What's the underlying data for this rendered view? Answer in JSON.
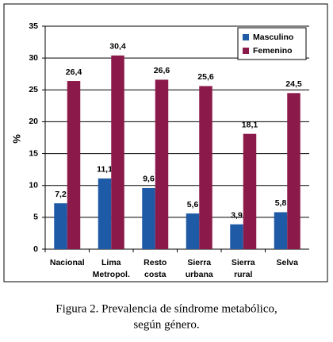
{
  "chart_data": {
    "type": "bar",
    "y_label": "%",
    "categories": [
      [
        "Nacional"
      ],
      [
        "Lima",
        "Metropol."
      ],
      [
        "Resto",
        "costa"
      ],
      [
        "Sierra",
        "urbana"
      ],
      [
        "Sierra",
        "rural"
      ],
      [
        "Selva"
      ]
    ],
    "series": [
      {
        "name": "Masculino",
        "color": "#1f5aa6",
        "values": [
          7.2,
          11.1,
          9.6,
          5.6,
          3.9,
          5.8
        ],
        "value_labels": [
          "7,2",
          "11,1",
          "9,6",
          "5,6",
          "3,9",
          "5,8"
        ]
      },
      {
        "name": "Femenino",
        "color": "#8b1a4a",
        "values": [
          26.4,
          30.4,
          26.6,
          25.6,
          18.1,
          24.5
        ],
        "value_labels": [
          "26,4",
          "30,4",
          "26,6",
          "25,6",
          "18,1",
          "24,5"
        ]
      }
    ],
    "ylim": [
      0,
      35
    ],
    "yticks": [
      0,
      5,
      10,
      15,
      20,
      25,
      30,
      35
    ],
    "grid": true,
    "legend": "top-right",
    "caption": [
      "Figura 2. Prevalencia de síndrome metabólico,",
      "según género."
    ]
  }
}
